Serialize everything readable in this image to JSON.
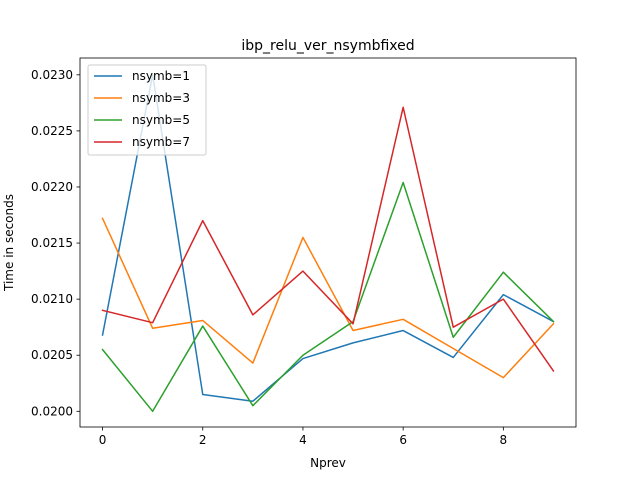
{
  "chart_data": {
    "type": "line",
    "title": "ibp_relu_ver_nsymbfixed",
    "xlabel": "Nprev",
    "ylabel": "Time in seconds",
    "x": [
      0,
      1,
      2,
      3,
      4,
      5,
      6,
      7,
      8,
      9
    ],
    "xlim": [
      -0.45,
      9.45
    ],
    "ylim": [
      0.01986,
      0.02315
    ],
    "xticks": [
      0,
      2,
      4,
      6,
      8
    ],
    "xtick_labels": [
      "0",
      "2",
      "4",
      "6",
      "8"
    ],
    "yticks": [
      0.02,
      0.0205,
      0.021,
      0.0215,
      0.022,
      0.0225,
      0.023
    ],
    "ytick_labels": [
      "0.0200",
      "0.0205",
      "0.0210",
      "0.0215",
      "0.0220",
      "0.0225",
      "0.0230"
    ],
    "grid": false,
    "legend_position": "top-left",
    "series": [
      {
        "name": "nsymb=1",
        "color": "#1f77b4",
        "values": [
          0.02068,
          0.023,
          0.02015,
          0.02009,
          0.02047,
          0.02061,
          0.02072,
          0.02048,
          0.02104,
          0.0208
        ]
      },
      {
        "name": "nsymb=3",
        "color": "#ff7f0e",
        "values": [
          0.02172,
          0.02074,
          0.02081,
          0.02043,
          0.02155,
          0.02072,
          0.02082,
          0.02056,
          0.0203,
          0.02078
        ]
      },
      {
        "name": "nsymb=5",
        "color": "#2ca02c",
        "values": [
          0.02055,
          0.02,
          0.02076,
          0.02005,
          0.0205,
          0.0208,
          0.02204,
          0.02066,
          0.02124,
          0.0208
        ]
      },
      {
        "name": "nsymb=7",
        "color": "#d62728",
        "values": [
          0.0209,
          0.02079,
          0.0217,
          0.02086,
          0.02125,
          0.02078,
          0.02271,
          0.02075,
          0.021,
          0.02036
        ]
      }
    ]
  }
}
